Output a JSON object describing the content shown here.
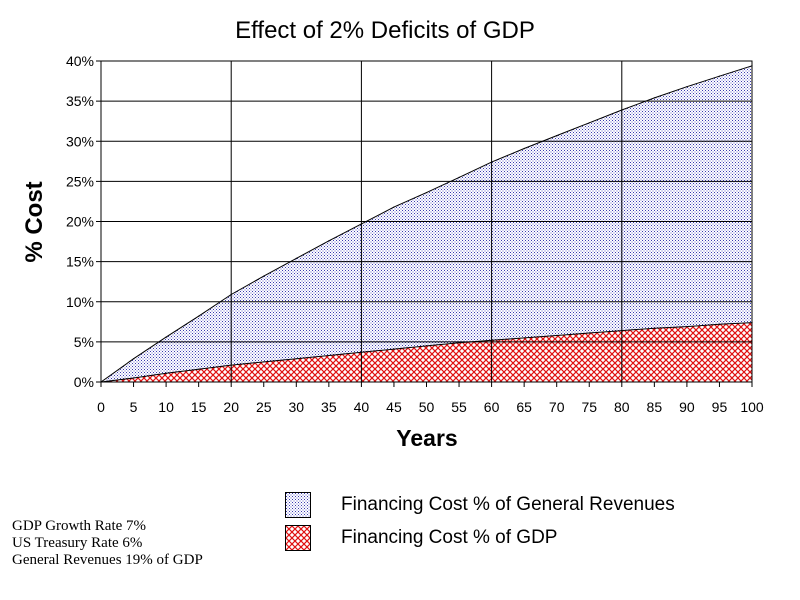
{
  "chart_data": {
    "type": "area",
    "title": "Effect of 2% Deficits of GDP",
    "xlabel": "Years",
    "ylabel": "% Cost",
    "xlim": [
      0,
      100
    ],
    "ylim": [
      0,
      40
    ],
    "x_ticks": [
      "0",
      "5",
      "10",
      "15",
      "20",
      "25",
      "30",
      "35",
      "40",
      "45",
      "50",
      "55",
      "60",
      "65",
      "70",
      "75",
      "80",
      "85",
      "90",
      "95",
      "100"
    ],
    "y_ticks": [
      "0%",
      "5%",
      "10%",
      "15%",
      "20%",
      "25%",
      "30%",
      "35%",
      "40%"
    ],
    "grid": "major vertical every 20 years, horizontal every 5%",
    "legend_position": "bottom",
    "x": [
      0,
      5,
      10,
      15,
      20,
      25,
      30,
      35,
      40,
      45,
      50,
      55,
      60,
      65,
      70,
      75,
      80,
      85,
      90,
      95,
      100
    ],
    "series": [
      {
        "name": "Financing Cost % of General Revenues",
        "color": "#9a9ad6",
        "pattern": "fine dotted blue",
        "values": [
          0,
          2.9,
          5.6,
          8.2,
          10.9,
          13.2,
          15.4,
          17.6,
          19.7,
          21.8,
          23.6,
          25.5,
          27.4,
          29.1,
          30.7,
          32.3,
          33.9,
          35.4,
          36.8,
          38.1,
          39.4
        ]
      },
      {
        "name": "Financing Cost % of GDP",
        "color": "#e01010",
        "pattern": "red crosshatch",
        "values": [
          0,
          0.5,
          1.1,
          1.6,
          2.1,
          2.5,
          2.9,
          3.3,
          3.7,
          4.1,
          4.5,
          4.9,
          5.2,
          5.5,
          5.8,
          6.1,
          6.4,
          6.7,
          6.9,
          7.2,
          7.4
        ]
      }
    ],
    "annotations": [
      "GDP Growth Rate 7%",
      "US Treasury Rate 6%",
      "General Revenues 19% of GDP"
    ]
  }
}
